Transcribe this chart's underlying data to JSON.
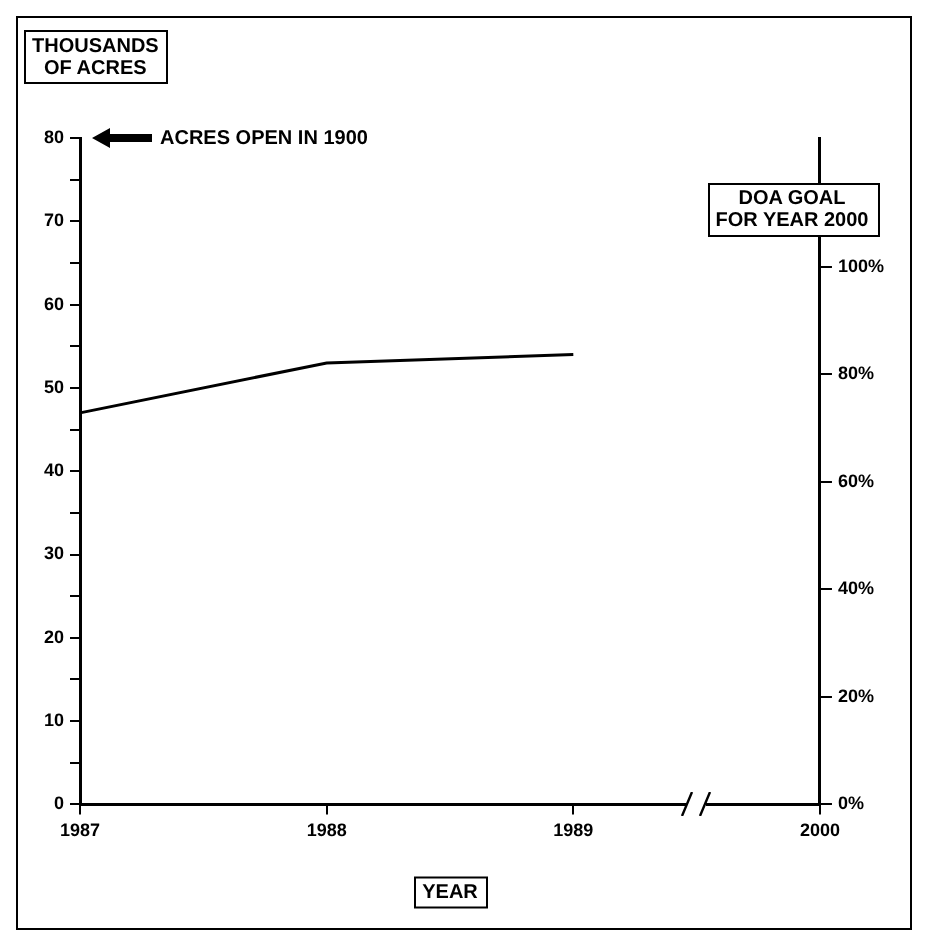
{
  "chart_data": {
    "type": "line",
    "ylabel": "THOUSANDS OF ACRES",
    "xlabel": "YEAR",
    "categories": [
      "1987",
      "1988",
      "1989",
      "2000"
    ],
    "series": [
      {
        "color": "#000000",
        "values": [
          47,
          53,
          54,
          null
        ]
      }
    ],
    "ylim": [
      0,
      80
    ],
    "yticks": [
      0,
      {
        "value": 5,
        "label": null
      },
      10,
      {
        "value": 15,
        "label": null
      },
      20,
      {
        "value": 25,
        "label": null
      },
      30,
      {
        "value": 35,
        "label": null
      },
      40,
      {
        "value": 45,
        "label": null
      },
      50,
      {
        "value": 55,
        "label": null
      },
      60,
      {
        "value": 65,
        "label": null
      },
      70,
      {
        "value": 75,
        "label": null
      },
      80
    ],
    "y2lim": [
      0,
      124
    ],
    "y2ticks": [
      {
        "value": 0,
        "label": "0%"
      },
      {
        "value": 20,
        "label": "20%"
      },
      {
        "value": 40,
        "label": "40%"
      },
      {
        "value": 60,
        "label": "60%"
      },
      {
        "value": 80,
        "label": "80%"
      },
      {
        "value": 100,
        "label": "100%"
      }
    ],
    "annotations": [
      "ACRES OPEN IN 1900",
      "DOA GOAL FOR YEAR 2000"
    ],
    "grid": false,
    "legend": false,
    "marker": "none"
  }
}
